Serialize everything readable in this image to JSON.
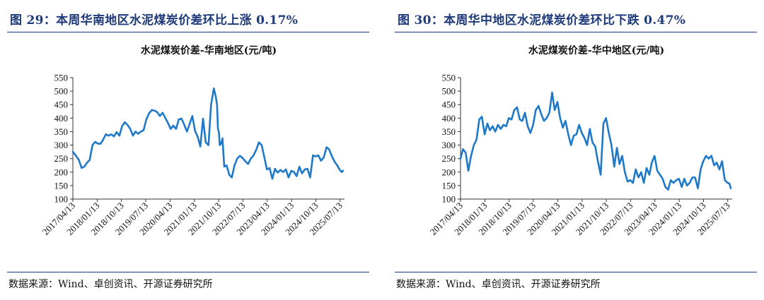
{
  "panels": [
    {
      "figure_title": "图 29：本周华南地区水泥煤炭价差环比上涨 0.17%",
      "source": "数据来源：Wind、卓创资讯、开源证券研究所",
      "chart_data": {
        "type": "line",
        "title": "水泥煤炭价差-华南地区(元/吨)",
        "xlabel": "",
        "ylabel": "",
        "ylim": [
          100,
          550
        ],
        "yticks": [
          100,
          150,
          200,
          250,
          300,
          350,
          400,
          450,
          500,
          550
        ],
        "xlim": [
          "2017/04/13",
          "2025/09/01"
        ],
        "xticks": [
          "2017/04/13",
          "2018/01/13",
          "2018/10/13",
          "2019/07/13",
          "2020/04/13",
          "2021/01/13",
          "2021/10/13",
          "2022/07/13",
          "2023/04/13",
          "2024/01/13",
          "2024/10/13",
          "2025/07/13"
        ],
        "grid": false,
        "line_color": "#1f78c8",
        "series": [
          {
            "x": [
              "2017/04/13",
              "2017/05/15",
              "2017/06/20",
              "2017/07/20",
              "2017/08/20",
              "2017/09/20",
              "2017/10/20",
              "2017/11/20",
              "2017/12/20",
              "2018/01/20",
              "2018/02/20",
              "2018/03/20",
              "2018/04/20",
              "2018/05/20",
              "2018/06/20",
              "2018/07/20",
              "2018/08/20",
              "2018/09/20",
              "2018/10/20",
              "2018/11/20",
              "2018/12/20",
              "2019/01/20",
              "2019/02/20",
              "2019/03/20",
              "2019/04/20",
              "2019/05/20",
              "2019/06/20",
              "2019/07/20",
              "2019/08/20",
              "2019/09/20",
              "2019/10/20",
              "2019/11/20",
              "2019/12/20",
              "2020/01/20",
              "2020/02/20",
              "2020/03/20",
              "2020/04/20",
              "2020/05/20",
              "2020/06/20",
              "2020/07/20",
              "2020/08/20",
              "2020/09/20",
              "2020/10/20",
              "2020/11/20",
              "2020/12/20",
              "2021/01/20",
              "2021/02/20",
              "2021/03/20",
              "2021/04/20",
              "2021/05/20",
              "2021/06/20",
              "2021/07/20",
              "2021/08/20",
              "2021/09/10",
              "2021/09/25",
              "2021/10/05",
              "2021/10/15",
              "2021/10/25",
              "2021/11/10",
              "2021/11/25",
              "2021/12/15",
              "2022/01/10",
              "2022/02/10",
              "2022/03/10",
              "2022/04/10",
              "2022/05/10",
              "2022/06/10",
              "2022/07/10",
              "2022/08/10",
              "2022/09/10",
              "2022/10/10",
              "2022/11/10",
              "2022/12/10",
              "2023/01/10",
              "2023/02/10",
              "2023/03/10",
              "2023/04/10",
              "2023/05/10",
              "2023/06/10",
              "2023/07/10",
              "2023/08/10",
              "2023/09/10",
              "2023/10/10",
              "2023/11/10",
              "2023/12/10",
              "2024/01/10",
              "2024/02/10",
              "2024/03/10",
              "2024/04/10",
              "2024/05/10",
              "2024/06/10",
              "2024/07/10",
              "2024/08/10",
              "2024/09/10",
              "2024/10/10",
              "2024/11/10",
              "2024/12/10",
              "2025/01/10",
              "2025/02/10",
              "2025/03/10",
              "2025/04/10",
              "2025/05/10",
              "2025/06/10",
              "2025/07/10",
              "2025/08/01",
              "2025/08/15"
            ],
            "y": [
              275,
              262,
              245,
              215,
              220,
              235,
              245,
              300,
              312,
              305,
              305,
              320,
              340,
              335,
              340,
              332,
              348,
              335,
              370,
              385,
              375,
              360,
              335,
              350,
              342,
              350,
              355,
              395,
              418,
              430,
              428,
              422,
              408,
              420,
              400,
              382,
              360,
              372,
              360,
              395,
              398,
              375,
              350,
              378,
              408,
              352,
              330,
              295,
              398,
              310,
              300,
              450,
              510,
              480,
              450,
              360,
              348,
              300,
              305,
              325,
              220,
              225,
              190,
              180,
              225,
              250,
              260,
              252,
              240,
              230,
              250,
              262,
              282,
              310,
              300,
              258,
              210,
              215,
              175,
              212,
              198,
              208,
              200,
              210,
              180,
              205,
              200,
              185,
              220,
              195,
              210,
              212,
              180,
              262,
              258,
              262,
              242,
              255,
              292,
              285,
              260,
              240,
              225,
              208,
              200,
              205
            ]
          }
        ]
      }
    },
    {
      "figure_title": "图 30：本周华中地区水泥煤炭价差环比下跌 0.47%",
      "source": "数据来源：Wind、卓创资讯、开源证券研究所",
      "chart_data": {
        "type": "line",
        "title": "水泥煤炭价差-华中地区(元/吨)",
        "xlabel": "",
        "ylabel": "",
        "ylim": [
          100,
          550
        ],
        "yticks": [
          100,
          150,
          200,
          250,
          300,
          350,
          400,
          450,
          500,
          550
        ],
        "xlim": [
          "2017/04/13",
          "2025/09/01"
        ],
        "xticks": [
          "2017/04/13",
          "2018/01/13",
          "2018/10/13",
          "2019/07/13",
          "2020/04/13",
          "2021/01/13",
          "2021/10/13",
          "2022/07/13",
          "2023/04/13",
          "2024/01/13",
          "2024/10/13",
          "2025/07/13"
        ],
        "grid": false,
        "line_color": "#1f78c8",
        "series": [
          {
            "x": [
              "2017/04/13",
              "2017/05/10",
              "2017/06/10",
              "2017/07/10",
              "2017/08/10",
              "2017/09/10",
              "2017/10/10",
              "2017/11/10",
              "2017/12/10",
              "2018/01/10",
              "2018/02/10",
              "2018/03/10",
              "2018/04/10",
              "2018/05/10",
              "2018/06/10",
              "2018/07/10",
              "2018/08/10",
              "2018/09/10",
              "2018/10/10",
              "2018/11/10",
              "2018/12/10",
              "2019/01/10",
              "2019/02/10",
              "2019/03/10",
              "2019/04/10",
              "2019/05/10",
              "2019/06/10",
              "2019/07/10",
              "2019/08/10",
              "2019/09/10",
              "2019/10/10",
              "2019/11/10",
              "2019/12/10",
              "2020/01/10",
              "2020/02/10",
              "2020/03/10",
              "2020/04/10",
              "2020/05/10",
              "2020/06/10",
              "2020/07/10",
              "2020/08/10",
              "2020/09/10",
              "2020/10/10",
              "2020/11/10",
              "2020/12/10",
              "2021/01/10",
              "2021/02/10",
              "2021/03/10",
              "2021/04/10",
              "2021/05/10",
              "2021/06/10",
              "2021/07/10",
              "2021/08/10",
              "2021/09/10",
              "2021/10/10",
              "2021/11/10",
              "2021/12/10",
              "2022/01/10",
              "2022/02/10",
              "2022/03/10",
              "2022/04/10",
              "2022/05/10",
              "2022/06/10",
              "2022/07/10",
              "2022/08/10",
              "2022/09/10",
              "2022/10/10",
              "2022/11/10",
              "2022/12/10",
              "2023/01/10",
              "2023/02/10",
              "2023/03/10",
              "2023/04/10",
              "2023/05/10",
              "2023/06/10",
              "2023/07/10",
              "2023/08/10",
              "2023/09/10",
              "2023/10/10",
              "2023/11/10",
              "2023/12/10",
              "2024/01/10",
              "2024/02/10",
              "2024/03/10",
              "2024/04/10",
              "2024/05/10",
              "2024/06/10",
              "2024/07/10",
              "2024/08/10",
              "2024/09/10",
              "2024/10/10",
              "2024/11/10",
              "2024/12/10",
              "2025/01/10",
              "2025/02/10",
              "2025/03/10",
              "2025/04/10",
              "2025/05/10",
              "2025/06/10",
              "2025/07/10",
              "2025/08/01",
              "2025/08/15"
            ],
            "y": [
              250,
              285,
              272,
              205,
              260,
              300,
              320,
              395,
              405,
              340,
              380,
              355,
              370,
              350,
              375,
              360,
              375,
              370,
              400,
              395,
              430,
              440,
              395,
              390,
              420,
              370,
              345,
              375,
              430,
              445,
              415,
              390,
              400,
              420,
              495,
              430,
              460,
              400,
              365,
              390,
              340,
              300,
              335,
              340,
              375,
              345,
              325,
              300,
              360,
              310,
              295,
              240,
              190,
              380,
              400,
              345,
              300,
              220,
              290,
              230,
              260,
              200,
              165,
              170,
              160,
              210,
              180,
              200,
              160,
              215,
              190,
              235,
              260,
              205,
              190,
              175,
              145,
              135,
              170,
              160,
              170,
              175,
              145,
              175,
              150,
              160,
              180,
              180,
              140,
              210,
              240,
              260,
              250,
              260,
              225,
              235,
              210,
              240,
              170,
              160,
              158,
              140
            ]
          }
        ]
      }
    }
  ]
}
